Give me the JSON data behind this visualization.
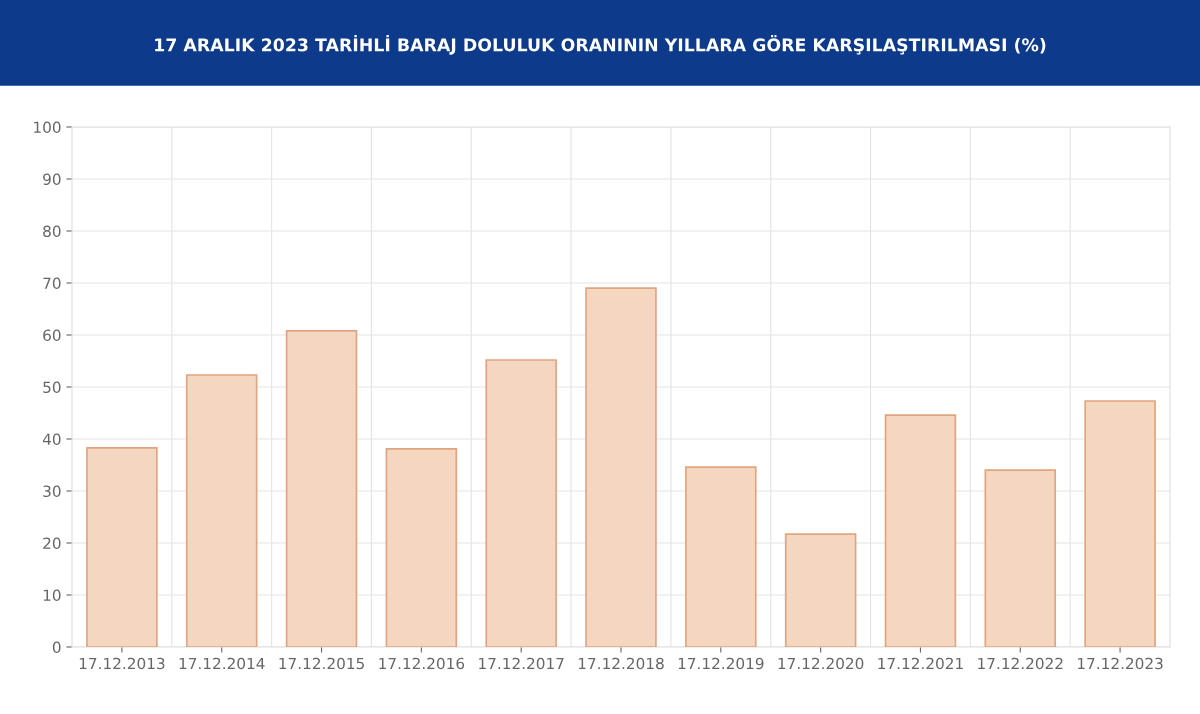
{
  "chart_data": {
    "type": "bar",
    "title": "17 ARALIK 2023 TARİHLİ BARAJ DOLULUK ORANININ YILLARA GÖRE KARŞILAŞTIRILMASI (%)",
    "categories": [
      "17.12.2013",
      "17.12.2014",
      "17.12.2015",
      "17.12.2016",
      "17.12.2017",
      "17.12.2018",
      "17.12.2019",
      "17.12.2020",
      "17.12.2021",
      "17.12.2022",
      "17.12.2023"
    ],
    "values": [
      38.3,
      52.3,
      60.8,
      38.1,
      55.2,
      69.0,
      34.6,
      21.7,
      44.6,
      34.0,
      47.3
    ],
    "color": "#f4d6c1",
    "ylim": [
      0,
      100
    ],
    "yticks": [
      0,
      10,
      20,
      30,
      40,
      50,
      60,
      70,
      80,
      90,
      100
    ],
    "grid": true
  }
}
